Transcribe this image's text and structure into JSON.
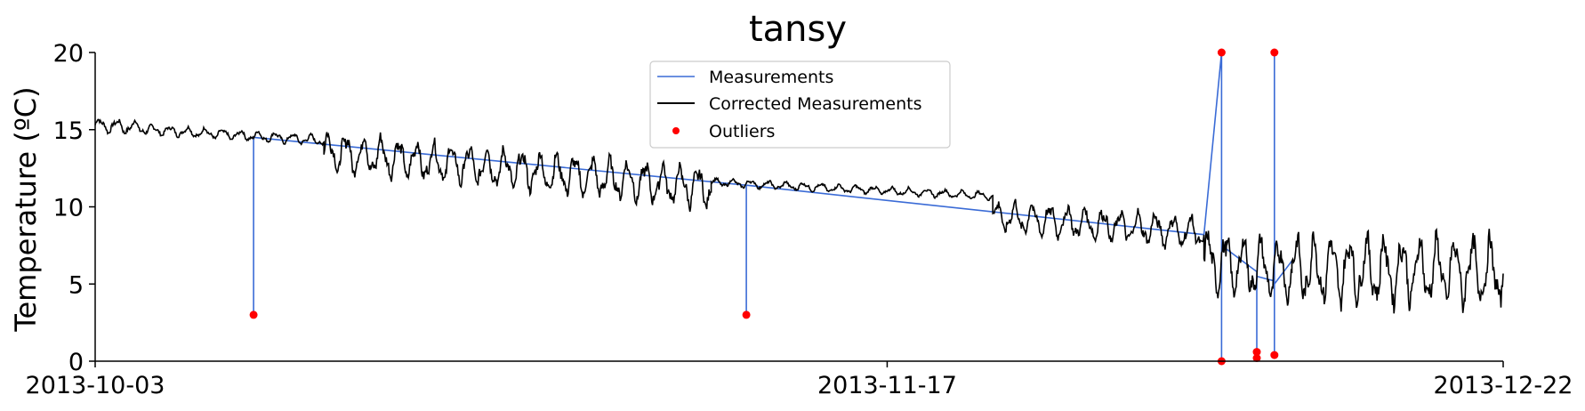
{
  "chart_data": {
    "type": "line",
    "title": "tansy",
    "xlabel": "",
    "ylabel": "Temperature (ºC)",
    "ylim": [
      0,
      20
    ],
    "xlim": [
      "2013-10-03",
      "2013-12-22"
    ],
    "x_ticks": [
      "2013-10-03",
      "2013-11-17",
      "2013-12-22"
    ],
    "y_ticks": [
      0,
      5,
      10,
      15,
      20
    ],
    "grid": false,
    "legend_placement": "top-center",
    "colors": {
      "measurements": "#3a6bd6",
      "corrected": "#000000",
      "outliers": "#ff0000"
    },
    "series": [
      {
        "name": "Measurements",
        "style": "line",
        "color": "#3a6bd6",
        "points": [
          [
            "2013-10-12",
            14.5
          ],
          [
            "2013-10-12",
            3.0
          ],
          [
            "2013-10-12",
            14.5
          ],
          [
            "2013-11-09",
            11.4
          ],
          [
            "2013-11-09",
            3.0
          ],
          [
            "2013-11-09",
            11.4
          ],
          [
            "2013-12-05",
            8.2
          ],
          [
            "2013-12-06",
            20.0
          ],
          [
            "2013-12-06",
            0.0
          ],
          [
            "2013-12-06",
            20.0
          ],
          [
            "2013-12-06",
            7.5
          ],
          [
            "2013-12-08",
            5.8
          ],
          [
            "2013-12-08",
            0.6
          ],
          [
            "2013-12-08",
            0.2
          ],
          [
            "2013-12-08",
            5.5
          ],
          [
            "2013-12-09",
            5.2
          ],
          [
            "2013-12-09",
            20.0
          ],
          [
            "2013-12-09",
            0.4
          ],
          [
            "2013-12-09",
            5.0
          ],
          [
            "2013-12-10",
            6.5
          ]
        ]
      },
      {
        "name": "Corrected Measurements",
        "style": "line",
        "color": "#000000",
        "segments": [
          {
            "start": "2013-10-03",
            "end": "2013-10-06",
            "base_start": 15.3,
            "base_end": 15.1,
            "amplitude": 0.7
          },
          {
            "start": "2013-10-06",
            "end": "2013-10-16",
            "base_start": 15.0,
            "base_end": 14.3,
            "amplitude": 0.5
          },
          {
            "start": "2013-10-16",
            "end": "2013-11-07",
            "base_start": 13.6,
            "base_end": 11.2,
            "amplitude": 2.0
          },
          {
            "start": "2013-11-07",
            "end": "2013-11-23",
            "base_start": 11.6,
            "base_end": 10.7,
            "amplitude": 0.4
          },
          {
            "start": "2013-11-23",
            "end": "2013-12-05",
            "base_start": 9.4,
            "base_end": 8.3,
            "amplitude": 1.6
          },
          {
            "start": "2013-12-05",
            "end": "2013-12-10",
            "base_start": 6.5,
            "base_end": 5.8,
            "amplitude": 3.0
          },
          {
            "start": "2013-12-10",
            "end": "2013-12-22",
            "base_start": 6.0,
            "base_end": 5.8,
            "amplitude": 3.4
          }
        ]
      },
      {
        "name": "Outliers",
        "style": "markers",
        "color": "#ff0000",
        "points": [
          [
            "2013-10-12",
            3.0
          ],
          [
            "2013-11-09",
            3.0
          ],
          [
            "2013-12-06",
            20.0
          ],
          [
            "2013-12-06",
            0.0
          ],
          [
            "2013-12-08",
            0.6
          ],
          [
            "2013-12-08",
            0.2
          ],
          [
            "2013-12-09",
            20.0
          ],
          [
            "2013-12-09",
            0.4
          ]
        ]
      }
    ]
  }
}
